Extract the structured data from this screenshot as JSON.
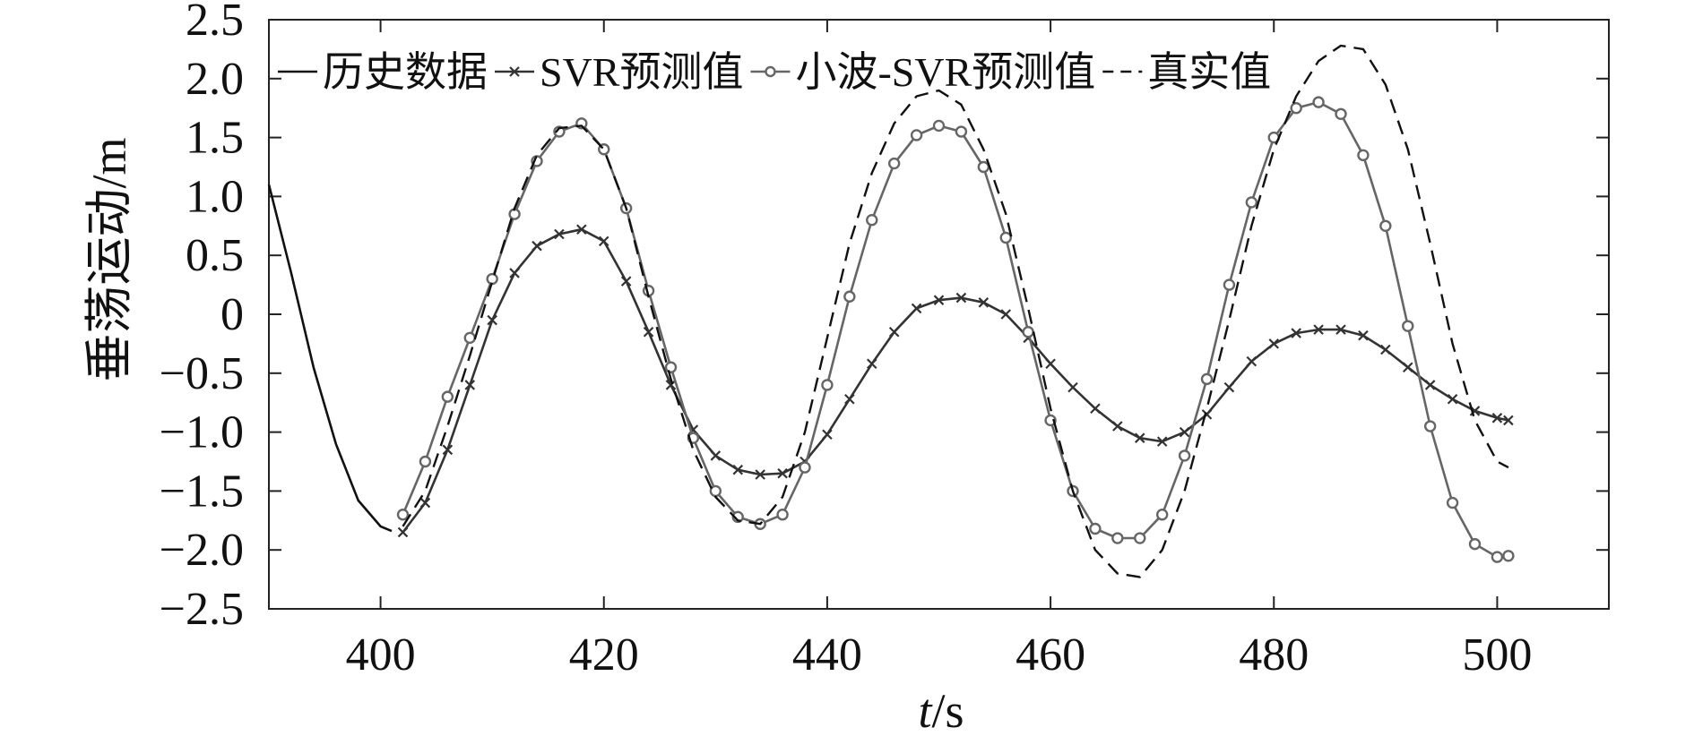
{
  "chart_data": {
    "type": "line",
    "title": "",
    "xlabel_italic": "t",
    "xlabel_unit": "/s",
    "ylabel": "垂荡运动/m",
    "xlim": [
      390,
      510
    ],
    "ylim": [
      -2.5,
      2.5
    ],
    "x_ticks": [
      400,
      420,
      440,
      460,
      480,
      500
    ],
    "x_tick_labels": [
      "400",
      "420",
      "440",
      "460",
      "480",
      "500"
    ],
    "y_ticks": [
      2.5,
      2.0,
      1.5,
      1.0,
      0.5,
      0,
      -0.5,
      -1.0,
      -1.5,
      -2.0,
      -2.5
    ],
    "y_tick_labels": [
      "2.5",
      "2.0",
      "1.5",
      "1.0",
      "0.5",
      "0",
      "−0.5",
      "−1.0",
      "−1.5",
      "−2.0",
      "−2.5"
    ],
    "grid": false,
    "legend_position": "top-left",
    "series": [
      {
        "name": "历史数据",
        "style": "solid",
        "marker": "none",
        "color": "#111111",
        "x": [
          390,
          392,
          394,
          396,
          398,
          400,
          401
        ],
        "y": [
          1.1,
          0.35,
          -0.45,
          -1.1,
          -1.58,
          -1.8,
          -1.84
        ]
      },
      {
        "name": "SVR预测值",
        "style": "solid",
        "marker": "x",
        "color": "#333333",
        "x": [
          402,
          404,
          406,
          408,
          410,
          412,
          414,
          416,
          418,
          420,
          422,
          424,
          426,
          428,
          430,
          432,
          434,
          436,
          438,
          440,
          442,
          444,
          446,
          448,
          450,
          452,
          454,
          456,
          458,
          460,
          462,
          464,
          466,
          468,
          470,
          472,
          474,
          476,
          478,
          480,
          482,
          484,
          486,
          488,
          490,
          492,
          494,
          496,
          498,
          500,
          501
        ],
        "y": [
          -1.85,
          -1.6,
          -1.15,
          -0.6,
          -0.05,
          0.35,
          0.58,
          0.68,
          0.72,
          0.62,
          0.28,
          -0.15,
          -0.6,
          -0.98,
          -1.2,
          -1.32,
          -1.36,
          -1.35,
          -1.25,
          -1.02,
          -0.72,
          -0.42,
          -0.15,
          0.05,
          0.12,
          0.14,
          0.1,
          0.0,
          -0.2,
          -0.42,
          -0.62,
          -0.8,
          -0.95,
          -1.05,
          -1.08,
          -1.0,
          -0.85,
          -0.62,
          -0.4,
          -0.25,
          -0.16,
          -0.13,
          -0.13,
          -0.18,
          -0.3,
          -0.45,
          -0.6,
          -0.72,
          -0.82,
          -0.88,
          -0.9
        ]
      },
      {
        "name": "小波-SVR预测值",
        "style": "solid",
        "marker": "o",
        "color": "#666666",
        "x": [
          402,
          404,
          406,
          408,
          410,
          412,
          414,
          416,
          418,
          420,
          422,
          424,
          426,
          428,
          430,
          432,
          434,
          436,
          438,
          440,
          442,
          444,
          446,
          448,
          450,
          452,
          454,
          456,
          458,
          460,
          462,
          464,
          466,
          468,
          470,
          472,
          474,
          476,
          478,
          480,
          482,
          484,
          486,
          488,
          490,
          492,
          494,
          496,
          498,
          500,
          501
        ],
        "y": [
          -1.7,
          -1.25,
          -0.7,
          -0.2,
          0.3,
          0.85,
          1.3,
          1.55,
          1.62,
          1.4,
          0.9,
          0.2,
          -0.45,
          -1.05,
          -1.5,
          -1.72,
          -1.78,
          -1.7,
          -1.3,
          -0.6,
          0.15,
          0.8,
          1.28,
          1.52,
          1.6,
          1.55,
          1.25,
          0.65,
          -0.15,
          -0.9,
          -1.5,
          -1.82,
          -1.9,
          -1.9,
          -1.7,
          -1.2,
          -0.55,
          0.25,
          0.95,
          1.5,
          1.75,
          1.8,
          1.7,
          1.35,
          0.75,
          -0.1,
          -0.95,
          -1.6,
          -1.95,
          -2.06,
          -2.05
        ]
      },
      {
        "name": "真实值",
        "style": "dashed",
        "marker": "none",
        "color": "#111111",
        "x": [
          402,
          404,
          406,
          408,
          410,
          412,
          414,
          416,
          418,
          420,
          422,
          424,
          426,
          428,
          430,
          432,
          434,
          436,
          438,
          440,
          442,
          444,
          446,
          448,
          450,
          452,
          454,
          456,
          458,
          460,
          462,
          464,
          466,
          468,
          470,
          472,
          474,
          476,
          478,
          480,
          482,
          484,
          486,
          488,
          490,
          492,
          494,
          496,
          498,
          500,
          501
        ],
        "y": [
          -1.8,
          -1.5,
          -0.95,
          -0.35,
          0.28,
          0.9,
          1.35,
          1.58,
          1.6,
          1.4,
          0.9,
          0.15,
          -0.55,
          -1.15,
          -1.55,
          -1.75,
          -1.78,
          -1.55,
          -1.0,
          -0.2,
          0.6,
          1.2,
          1.62,
          1.85,
          1.9,
          1.78,
          1.4,
          0.85,
          0.05,
          -0.8,
          -1.5,
          -2.0,
          -2.2,
          -2.23,
          -2.0,
          -1.5,
          -0.8,
          -0.05,
          0.75,
          1.4,
          1.85,
          2.15,
          2.28,
          2.25,
          1.95,
          1.4,
          0.6,
          -0.25,
          -0.9,
          -1.25,
          -1.3
        ]
      }
    ]
  }
}
